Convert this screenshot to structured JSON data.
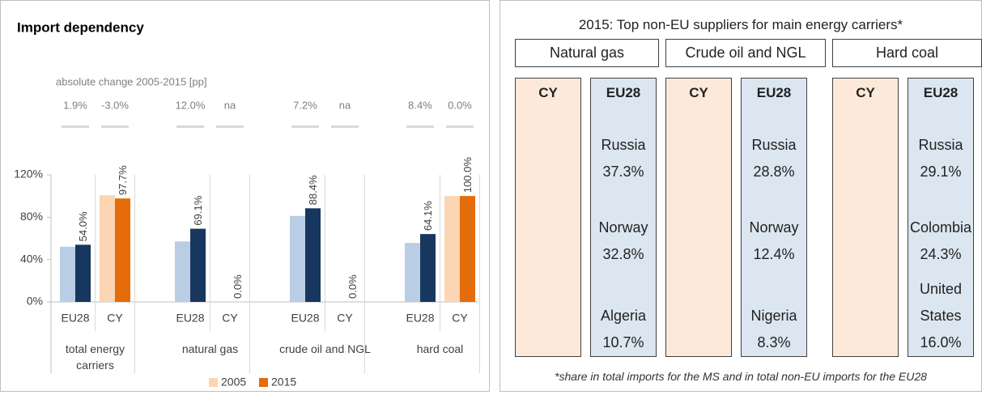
{
  "chart_data": {
    "type": "grouped_bar",
    "title": "Import dependency",
    "subtitle": "absolute change 2005-2015 [pp]",
    "categories": [
      "EU28",
      "CY",
      "EU28",
      "CY",
      "EU28",
      "CY",
      "EU28",
      "CY"
    ],
    "groups": [
      "total energy carriers",
      "natural gas",
      "crude oil and NGL",
      "hard coal"
    ],
    "changes": [
      "1.9%",
      "-3.0%",
      "12.0%",
      "na",
      "7.2%",
      "na",
      "8.4%",
      "0.0%"
    ],
    "series": [
      {
        "name": "2005",
        "color": "#fcd5b4",
        "eu_color": "#b9cde5",
        "values": [
          52.1,
          100.7,
          57.1,
          null,
          81.2,
          null,
          55.7,
          100.0
        ]
      },
      {
        "name": "2015",
        "color": "#e46c0a",
        "eu_color": "#17375e",
        "values": [
          54.0,
          97.7,
          69.1,
          0.0,
          88.4,
          0.0,
          64.1,
          100.0
        ],
        "value_labels": [
          "54.0%",
          "97.7%",
          "69.1%",
          "0.0%",
          "88.4%",
          "0.0%",
          "64.1%",
          "100.0%"
        ]
      }
    ],
    "ylim": [
      0,
      120
    ],
    "yticks": [
      {
        "value": 0,
        "label": "0%"
      },
      {
        "value": 40,
        "label": "40%"
      },
      {
        "value": 80,
        "label": "80%"
      },
      {
        "value": 120,
        "label": "120%"
      }
    ]
  },
  "suppliers": {
    "title": "2015: Top non-EU suppliers for main energy carriers*",
    "carriers": [
      {
        "name": "Natural gas",
        "columns": [
          {
            "label": "CY",
            "entries": []
          },
          {
            "label": "EU28",
            "entries": [
              {
                "country": "Russia",
                "share": "37.3%"
              },
              {
                "country": "Norway",
                "share": "32.8%"
              },
              {
                "country": "Algeria",
                "share": "10.7%"
              }
            ]
          }
        ]
      },
      {
        "name": "Crude oil and NGL",
        "columns": [
          {
            "label": "CY",
            "entries": []
          },
          {
            "label": "EU28",
            "entries": [
              {
                "country": "Russia",
                "share": "28.8%"
              },
              {
                "country": "Norway",
                "share": "12.4%"
              },
              {
                "country": "Nigeria",
                "share": "8.3%"
              }
            ]
          }
        ]
      },
      {
        "name": "Hard coal",
        "columns": [
          {
            "label": "CY",
            "entries": []
          },
          {
            "label": "EU28",
            "entries": [
              {
                "country": "Russia",
                "share": "29.1%"
              },
              {
                "country": "Colombia",
                "share": "24.3%"
              },
              {
                "country": "United States",
                "share": "16.0%"
              }
            ]
          }
        ]
      }
    ],
    "footnote": "*share in total imports for the MS and in total non-EU imports for the EU28"
  }
}
